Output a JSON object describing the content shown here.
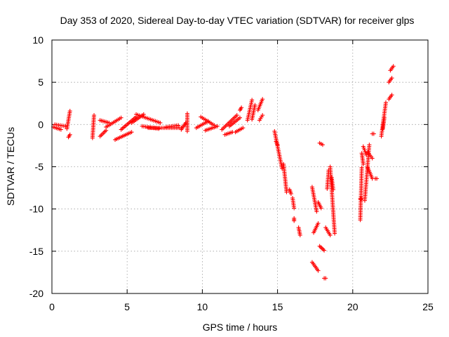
{
  "chart_data": {
    "type": "scatter",
    "title": "Day 353 of 2020, Sidereal Day-to-day VTEC variation (SDTVAR) for receiver glps",
    "xlabel": "GPS time / hours",
    "ylabel": "SDTVAR / TECUs",
    "xlim": [
      0,
      25
    ],
    "ylim": [
      -20,
      10
    ],
    "xticks": [
      0,
      5,
      10,
      15,
      20,
      25
    ],
    "yticks": [
      -20,
      -15,
      -10,
      -5,
      0,
      5,
      10
    ],
    "xtick_labels": [
      "0",
      "5",
      "10",
      "15",
      "20",
      "25"
    ],
    "ytick_labels": [
      "-20",
      "-15",
      "-10",
      "-5",
      "0",
      "5",
      "10"
    ],
    "grid": true,
    "marker": "plus",
    "color": "#ff0000",
    "series": [
      {
        "name": "SDTVAR",
        "segments": [
          {
            "x": [
              0.1,
              0.6
            ],
            "y": [
              -0.3,
              -0.6
            ]
          },
          {
            "x": [
              0.2,
              0.9
            ],
            "y": [
              0.0,
              -0.2
            ]
          },
          {
            "x": [
              1.0,
              1.2
            ],
            "y": [
              -0.5,
              1.6
            ]
          },
          {
            "x": [
              1.1,
              1.2
            ],
            "y": [
              -1.5,
              -1.2
            ]
          },
          {
            "x": [
              2.7,
              2.8
            ],
            "y": [
              -1.6,
              1.1
            ]
          },
          {
            "x": [
              3.2,
              3.6
            ],
            "y": [
              -1.4,
              -0.7
            ]
          },
          {
            "x": [
              3.2,
              3.8
            ],
            "y": [
              0.5,
              0.2
            ]
          },
          {
            "x": [
              3.6,
              4.6
            ],
            "y": [
              -0.3,
              0.8
            ]
          },
          {
            "x": [
              4.2,
              5.3
            ],
            "y": [
              -1.8,
              -0.9
            ]
          },
          {
            "x": [
              4.6,
              5.6
            ],
            "y": [
              -0.6,
              0.9
            ]
          },
          {
            "x": [
              5.3,
              6.1
            ],
            "y": [
              0.2,
              1.2
            ]
          },
          {
            "x": [
              5.6,
              7.2
            ],
            "y": [
              1.2,
              0.2
            ]
          },
          {
            "x": [
              6.0,
              7.1
            ],
            "y": [
              -0.2,
              -0.5
            ]
          },
          {
            "x": [
              6.4,
              8.6
            ],
            "y": [
              -0.4,
              -0.4
            ]
          },
          {
            "x": [
              7.6,
              8.4
            ],
            "y": [
              -0.3,
              -0.1
            ]
          },
          {
            "x": [
              8.6,
              8.9
            ],
            "y": [
              -0.6,
              0.2
            ]
          },
          {
            "x": [
              9.0,
              9.0
            ],
            "y": [
              -0.8,
              1.3
            ]
          },
          {
            "x": [
              9.6,
              10.4
            ],
            "y": [
              -0.4,
              0.4
            ]
          },
          {
            "x": [
              9.9,
              10.8
            ],
            "y": [
              0.9,
              -0.1
            ]
          },
          {
            "x": [
              10.2,
              11.0
            ],
            "y": [
              -0.7,
              -0.2
            ]
          },
          {
            "x": [
              11.3,
              12.3
            ],
            "y": [
              -0.6,
              1.1
            ]
          },
          {
            "x": [
              11.5,
              12.0
            ],
            "y": [
              -1.2,
              -0.9
            ]
          },
          {
            "x": [
              11.8,
              12.5
            ],
            "y": [
              -0.2,
              0.8
            ]
          },
          {
            "x": [
              12.2,
              12.7
            ],
            "y": [
              -0.9,
              -0.4
            ]
          },
          {
            "x": [
              12.5,
              12.6
            ],
            "y": [
              1.7,
              2.0
            ]
          },
          {
            "x": [
              13.0,
              13.3
            ],
            "y": [
              0.5,
              2.9
            ]
          },
          {
            "x": [
              13.3,
              13.5
            ],
            "y": [
              0.6,
              2.3
            ]
          },
          {
            "x": [
              13.7,
              14.0
            ],
            "y": [
              1.7,
              3.0
            ]
          },
          {
            "x": [
              13.8,
              14.0
            ],
            "y": [
              0.5,
              1.1
            ]
          },
          {
            "x": [
              14.8,
              15.3
            ],
            "y": [
              -0.8,
              -5.2
            ]
          },
          {
            "x": [
              14.9,
              15.0
            ],
            "y": [
              -2.0,
              -2.4
            ]
          },
          {
            "x": [
              15.4,
              15.6
            ],
            "y": [
              -4.7,
              -8.0
            ]
          },
          {
            "x": [
              15.8,
              15.9
            ],
            "y": [
              -7.7,
              -8.2
            ]
          },
          {
            "x": [
              16.0,
              16.1
            ],
            "y": [
              -8.7,
              -9.9
            ]
          },
          {
            "x": [
              16.1,
              16.1
            ],
            "y": [
              -11.1,
              -11.4
            ]
          },
          {
            "x": [
              16.4,
              16.5
            ],
            "y": [
              -12.2,
              -13.1
            ]
          },
          {
            "x": [
              17.3,
              17.6
            ],
            "y": [
              -7.4,
              -10.3
            ]
          },
          {
            "x": [
              17.3,
              17.7
            ],
            "y": [
              -16.3,
              -17.3
            ]
          },
          {
            "x": [
              17.4,
              17.7
            ],
            "y": [
              -12.8,
              -11.7
            ]
          },
          {
            "x": [
              17.7,
              17.9
            ],
            "y": [
              -9.2,
              -9.9
            ]
          },
          {
            "x": [
              17.8,
              18.0
            ],
            "y": [
              -2.2,
              -2.4
            ]
          },
          {
            "x": [
              17.8,
              18.1
            ],
            "y": [
              -14.4,
              -14.9
            ]
          },
          {
            "x": [
              18.1,
              18.2
            ],
            "y": [
              -18.2,
              -18.2
            ]
          },
          {
            "x": [
              18.2,
              18.5
            ],
            "y": [
              -12.2,
              -13.1
            ]
          },
          {
            "x": [
              18.3,
              18.4
            ],
            "y": [
              -7.6,
              -5.4
            ]
          },
          {
            "x": [
              18.5,
              18.8
            ],
            "y": [
              -5.0,
              -12.9
            ]
          },
          {
            "x": [
              18.6,
              18.7
            ],
            "y": [
              -6.3,
              -7.7
            ]
          },
          {
            "x": [
              20.5,
              20.6
            ],
            "y": [
              -11.3,
              -5.1
            ]
          },
          {
            "x": [
              20.5,
              20.6
            ],
            "y": [
              -8.8,
              -8.8
            ]
          },
          {
            "x": [
              20.6,
              20.7
            ],
            "y": [
              -3.4,
              -4.7
            ]
          },
          {
            "x": [
              20.7,
              20.9
            ],
            "y": [
              -2.6,
              -3.6
            ]
          },
          {
            "x": [
              20.8,
              21.1
            ],
            "y": [
              -9.0,
              -2.4
            ]
          },
          {
            "x": [
              21.0,
              21.3
            ],
            "y": [
              -5.1,
              -6.4
            ]
          },
          {
            "x": [
              21.0,
              21.3
            ],
            "y": [
              -3.3,
              -4.0
            ]
          },
          {
            "x": [
              21.5,
              21.6
            ],
            "y": [
              -6.4,
              -6.4
            ]
          },
          {
            "x": [
              21.3,
              21.4
            ],
            "y": [
              -1.1,
              -1.1
            ]
          },
          {
            "x": [
              21.9,
              22.2
            ],
            "y": [
              -1.4,
              2.6
            ]
          },
          {
            "x": [
              22.0,
              22.1
            ],
            "y": [
              -0.5,
              0.8
            ]
          },
          {
            "x": [
              22.4,
              22.6
            ],
            "y": [
              3.0,
              3.5
            ]
          },
          {
            "x": [
              22.4,
              22.6
            ],
            "y": [
              5.0,
              5.5
            ]
          },
          {
            "x": [
              22.5,
              22.7
            ],
            "y": [
              6.4,
              6.9
            ]
          }
        ]
      }
    ]
  }
}
